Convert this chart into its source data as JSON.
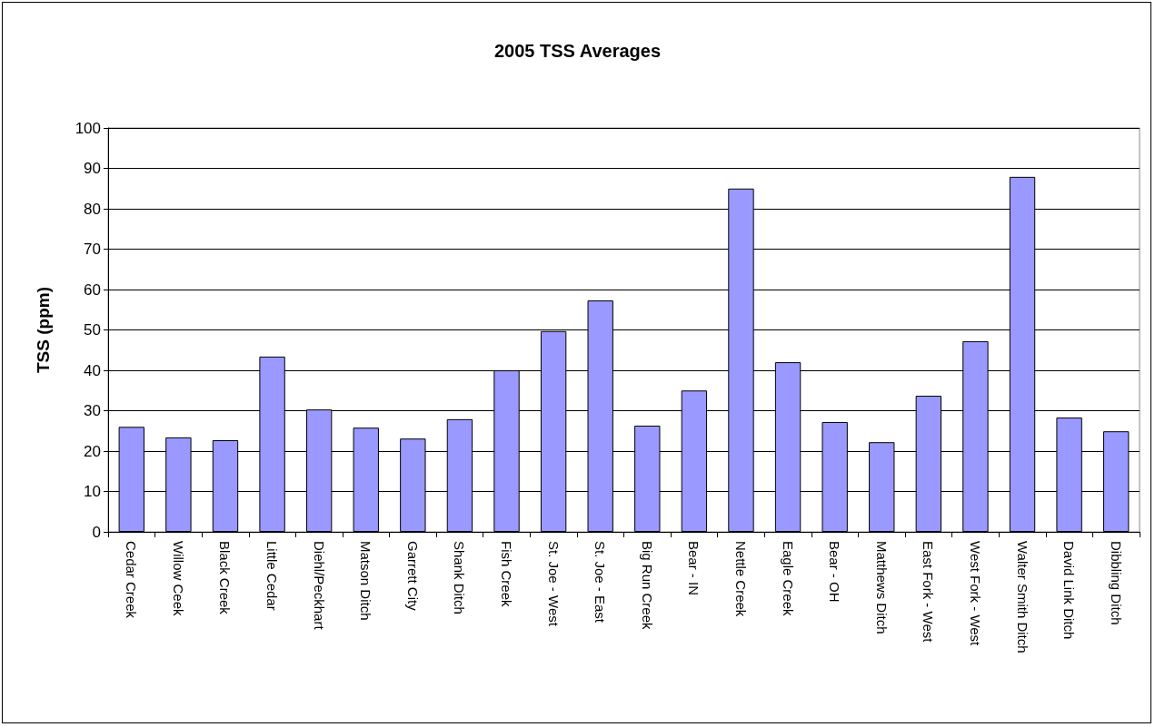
{
  "chart_data": {
    "type": "bar",
    "title": "2005 TSS Averages",
    "ylabel": "TSS (ppm)",
    "categories": [
      "Cedar Creek",
      "Willow Ceek",
      "Black Creek",
      "Little Cedar",
      "Diehl/Peckhart",
      "Matson Ditch",
      "Garrett City",
      "Shank Ditch",
      "Fish Creek",
      "St. Joe - West",
      "St. Joe - East",
      "Big Run Creek",
      "Bear - IN",
      "Nettle Creek",
      "Eagle Creek",
      "Bear - OH",
      "Matthews Ditch",
      "East Fork - West",
      "West Fork - West",
      "Walter Smith Ditch",
      "David Link Ditch",
      "Dibbling Ditch"
    ],
    "values": [
      26,
      23.4,
      22.7,
      43.4,
      30.3,
      25.8,
      23.1,
      27.9,
      40,
      49.7,
      57.3,
      26.3,
      35,
      85,
      42,
      27.2,
      22.2,
      33.7,
      47.2,
      87.9,
      28.3,
      24.9
    ],
    "color": "#9999ff",
    "ylim": [
      0,
      100
    ],
    "yticks": [
      0,
      10,
      20,
      30,
      40,
      50,
      60,
      70,
      80,
      90,
      100
    ],
    "grid": "y"
  }
}
